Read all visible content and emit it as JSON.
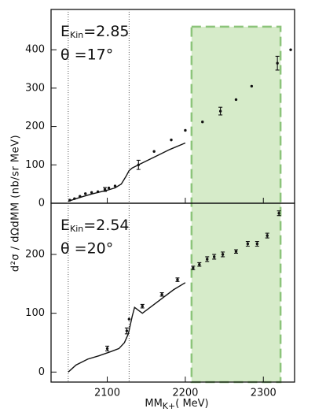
{
  "chart_data": [
    {
      "type": "scatter",
      "label_e": "E",
      "label_e_sub": "Kin",
      "label_e_val": "=2.85",
      "label_theta": "θ =17°",
      "ylabel": "d²σ / dΩdMM (nb/sr MeV)",
      "xlim": [
        2028,
        2340
      ],
      "ylim": [
        0,
        505
      ],
      "xticks": [
        2100,
        2200,
        2300
      ],
      "yticks": [
        0,
        100,
        200,
        300,
        400
      ],
      "vlines": [
        2050,
        2128
      ],
      "highlight_x": [
        2208,
        2322
      ],
      "highlight_top": 460,
      "highlight_color": "#d6ebc9",
      "series": [
        {
          "color": "#111111",
          "x": [
            2052,
            2058,
            2065,
            2072,
            2080,
            2088,
            2097,
            2102,
            2110,
            2140,
            2160,
            2182,
            2200,
            2222,
            2245,
            2265,
            2285,
            2318,
            2335
          ],
          "values": [
            8,
            12,
            18,
            25,
            28,
            30,
            36,
            40,
            45,
            100,
            135,
            165,
            190,
            212,
            240,
            270,
            305,
            365,
            400
          ],
          "errors": [
            null,
            null,
            null,
            null,
            null,
            null,
            5,
            null,
            null,
            12,
            null,
            null,
            null,
            null,
            10,
            null,
            null,
            18,
            null
          ]
        },
        {
          "color": "#111111",
          "line": true,
          "x": [
            2050,
            2060,
            2070,
            2080,
            2090,
            2100,
            2110,
            2118,
            2124,
            2128,
            2132,
            2140,
            2150,
            2165,
            2180,
            2200
          ],
          "values": [
            5,
            12,
            18,
            24,
            29,
            34,
            40,
            50,
            70,
            85,
            92,
            100,
            110,
            125,
            140,
            157
          ]
        }
      ]
    },
    {
      "type": "scatter",
      "label_e": "E",
      "label_e_sub": "Kin",
      "label_e_val": "=2.54",
      "label_theta": "θ =20°",
      "xlabel": "MM",
      "xlabel_sub": "K+",
      "xlabel_unit": "( MeV)",
      "xlim": [
        2028,
        2340
      ],
      "ylim": [
        -17,
        287
      ],
      "xticks": [
        2100,
        2200,
        2300
      ],
      "yticks": [
        0,
        100,
        200
      ],
      "vlines": [
        2050,
        2128
      ],
      "series": [
        {
          "color": "#111111",
          "x": [
            2100,
            2125,
            2128,
            2145,
            2170,
            2190,
            2210,
            2218,
            2228,
            2237,
            2248,
            2265,
            2280,
            2292,
            2305,
            2320
          ],
          "values": [
            40,
            70,
            90,
            112,
            132,
            157,
            177,
            183,
            192,
            196,
            200,
            205,
            218,
            218,
            232,
            270
          ],
          "errors": [
            4,
            5,
            null,
            3,
            3,
            3,
            3,
            3,
            4,
            4,
            4,
            3,
            4,
            4,
            4,
            4
          ]
        },
        {
          "color": "#111111",
          "line": true,
          "x": [
            2050,
            2060,
            2075,
            2090,
            2105,
            2115,
            2122,
            2127,
            2132,
            2135,
            2140,
            2145,
            2155,
            2170,
            2185,
            2200
          ],
          "values": [
            0,
            12,
            22,
            28,
            35,
            40,
            50,
            65,
            95,
            110,
            105,
            100,
            110,
            125,
            140,
            152
          ]
        }
      ]
    }
  ]
}
